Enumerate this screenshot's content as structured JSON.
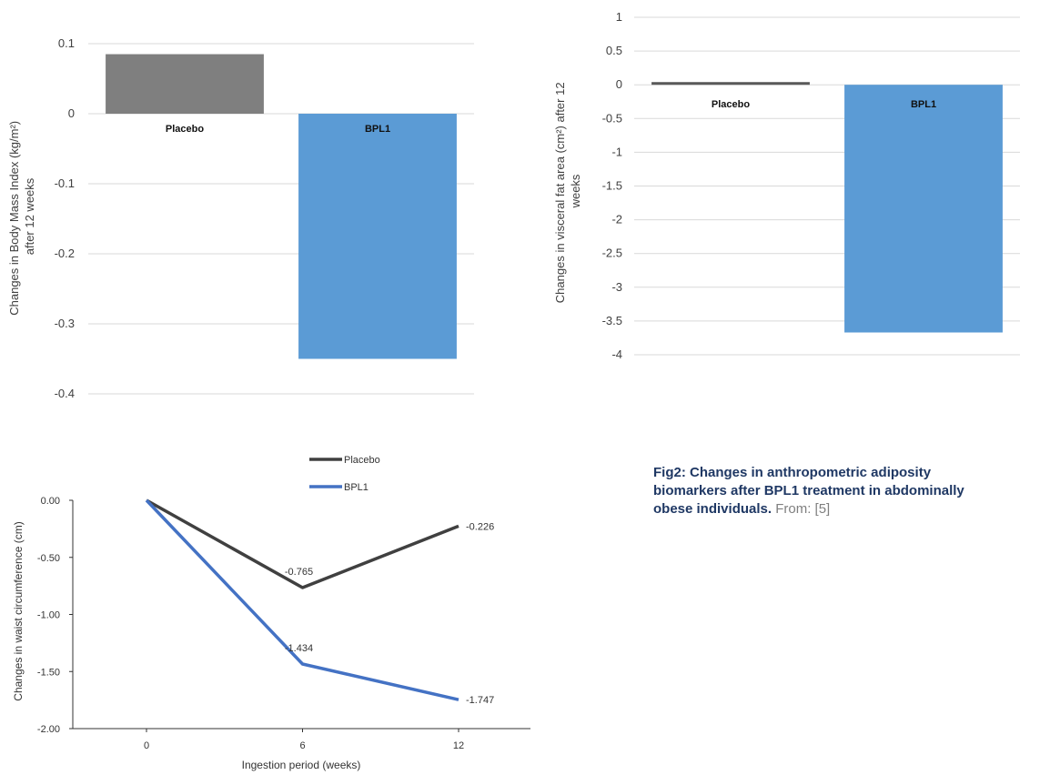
{
  "chart_data": [
    {
      "type": "bar",
      "categories": [
        "Placebo",
        "BPL1"
      ],
      "values": [
        0.085,
        -0.35
      ],
      "colors": [
        "#7f7f7f",
        "#5b9bd5"
      ],
      "ylabel_lines": [
        "Changes in Body Mass Index (kg/m²)",
        "after 12 weeks"
      ],
      "ylim": [
        -0.4,
        0.1
      ],
      "yticks": [
        0.1,
        0,
        -0.1,
        -0.2,
        -0.3,
        -0.4
      ],
      "ytick_labels": [
        "0.1",
        "0",
        "-0.1",
        "-0.2",
        "-0.3",
        "-0.4"
      ],
      "grid": true
    },
    {
      "type": "bar",
      "categories": [
        "Placebo",
        "BPL1"
      ],
      "values": [
        0.04,
        -3.67
      ],
      "colors": [
        "#595959",
        "#5b9bd5"
      ],
      "ylabel_lines": [
        "Changes in visceral fat area (cm²) after 12",
        "weeks"
      ],
      "ylim": [
        -4,
        1
      ],
      "yticks": [
        1,
        0.5,
        0,
        -0.5,
        -1,
        -1.5,
        -2,
        -2.5,
        -3,
        -3.5,
        -4
      ],
      "ytick_labels": [
        "1",
        "0.5",
        "0",
        "-0.5",
        "-1",
        "-1.5",
        "-2",
        "-2.5",
        "-3",
        "-3.5",
        "-4"
      ],
      "grid": true
    },
    {
      "type": "line",
      "x": [
        0,
        6,
        12
      ],
      "xtick_labels": [
        "0",
        "6",
        "12"
      ],
      "series": [
        {
          "name": "Placebo",
          "values": [
            0,
            -0.765,
            -0.226
          ],
          "labels": [
            "",
            "-0.765",
            "-0.226"
          ],
          "color": "#404040"
        },
        {
          "name": "BPL1",
          "values": [
            0,
            -1.434,
            -1.747
          ],
          "labels": [
            "",
            "-1.434",
            "-1.747"
          ],
          "color": "#4472c4"
        }
      ],
      "xlabel": "Ingestion period (weeks)",
      "ylabel": "Changes in waist circumference (cm)",
      "ylim": [
        -2.0,
        0.0
      ],
      "yticks": [
        0,
        -0.5,
        -1,
        -1.5,
        -2
      ],
      "ytick_labels": [
        "0.00",
        "-0.50",
        "-1.00",
        "-1.50",
        "-2.00"
      ],
      "legend": "top-right",
      "grid": false
    }
  ],
  "caption": {
    "bold_text": "Fig2: Changes in anthropometric adiposity biomarkers after BPL1 treatment in abdominally obese individuals.",
    "source_text": " From: [5]"
  }
}
